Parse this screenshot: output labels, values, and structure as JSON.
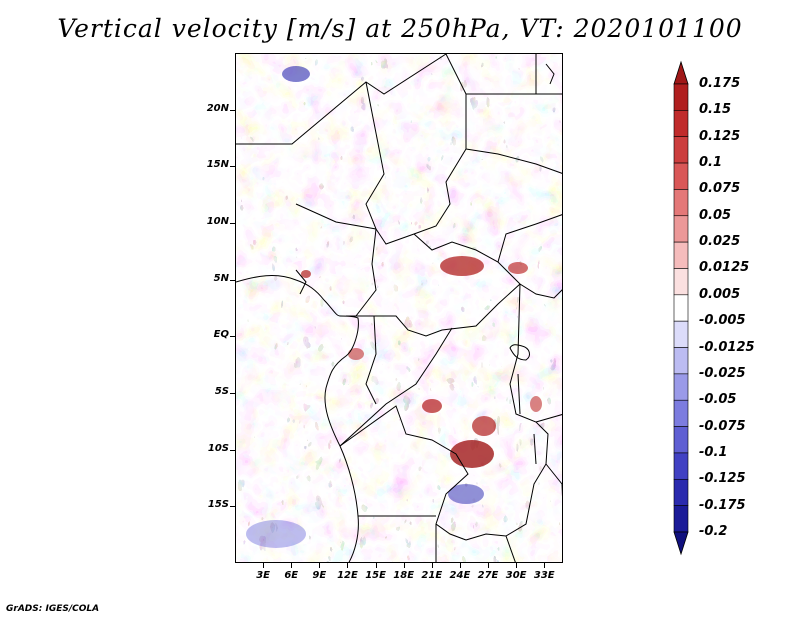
{
  "title": "Vertical velocity [m/s] at 250hPa, VT: 2020101100",
  "credit": "GrADS: IGES/COLA",
  "map": {
    "lat_labels": [
      "20N",
      "15N",
      "10N",
      "5N",
      "EQ",
      "5S",
      "10S",
      "15S"
    ],
    "lat_values": [
      20,
      15,
      10,
      5,
      0,
      -5,
      -10,
      -15
    ],
    "lon_labels": [
      "3E",
      "6E",
      "9E",
      "12E",
      "15E",
      "18E",
      "21E",
      "24E",
      "27E",
      "30E",
      "33E"
    ],
    "lon_values": [
      3,
      6,
      9,
      12,
      15,
      18,
      21,
      24,
      27,
      30,
      33
    ],
    "lat_range": [
      -20,
      25
    ],
    "lon_range": [
      0,
      35
    ],
    "field": "Vertical velocity",
    "units": "m/s",
    "level": "250hPa",
    "valid_time": "2020101100"
  },
  "colorbar": {
    "labels": [
      "0.175",
      "0.15",
      "0.125",
      "0.1",
      "0.075",
      "0.05",
      "0.025",
      "0.0125",
      "0.005",
      "-0.005",
      "-0.0125",
      "-0.025",
      "-0.05",
      "-0.075",
      "-0.1",
      "-0.125",
      "-0.175",
      "-0.2"
    ],
    "colors": [
      "#a01818",
      "#b01f1f",
      "#c02b2b",
      "#cc3e3e",
      "#d95757",
      "#e47878",
      "#ec9898",
      "#f5bcbc",
      "#fbe0e0",
      "#ffffff",
      "#dcdcfa",
      "#bcbcf2",
      "#9a9ae8",
      "#7c7cdf",
      "#5f5fd3",
      "#4141c3",
      "#2a2aae",
      "#1b1b98",
      "#10107e"
    ]
  }
}
